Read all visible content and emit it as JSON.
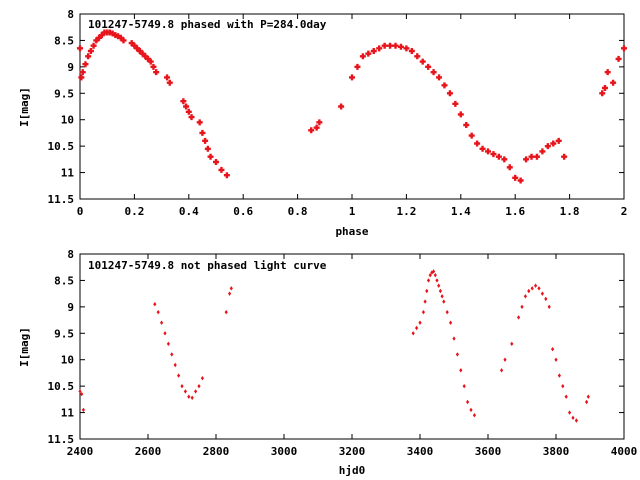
{
  "chart_data": [
    {
      "type": "scatter",
      "title": "101247-5749.8 phased with P=284.0day",
      "xlabel": "phase",
      "ylabel": "I[mag]",
      "xlim": [
        0,
        2
      ],
      "ylim": [
        8,
        11.5
      ],
      "y_inverted": true,
      "grid": false,
      "xticks": [
        0,
        0.2,
        0.4,
        0.6,
        0.8,
        1,
        1.2,
        1.4,
        1.6,
        1.8,
        2
      ],
      "xtick_labels": [
        "0",
        "0.2",
        "0.4",
        "0.6",
        "0.8",
        "1",
        "1.2",
        "1.4",
        "1.6",
        "1.8",
        "2"
      ],
      "yticks": [
        8,
        8.5,
        9,
        9.5,
        10,
        10.5,
        11,
        11.5
      ],
      "ytick_labels": [
        "8",
        "8.5",
        "9",
        "9.5",
        "10",
        "10.5",
        "11",
        "11.5"
      ],
      "marker_color": "#e8141c",
      "marker": "cross",
      "series": [
        {
          "x": [
            0.0,
            0.005,
            0.01,
            0.02,
            0.03,
            0.04,
            0.05,
            0.06,
            0.07,
            0.08,
            0.09,
            0.1,
            0.11,
            0.12,
            0.13,
            0.14,
            0.15,
            0.16,
            0.19,
            0.2,
            0.21,
            0.22,
            0.23,
            0.24,
            0.25,
            0.26,
            0.27,
            0.28,
            0.32,
            0.33,
            0.38,
            0.39,
            0.4,
            0.41,
            0.44,
            0.45,
            0.46,
            0.47,
            0.48,
            0.5,
            0.52,
            0.54,
            0.85,
            0.87,
            0.88,
            0.96,
            1.0,
            1.02,
            1.04,
            1.06,
            1.08,
            1.1,
            1.12,
            1.14,
            1.16,
            1.18,
            1.2,
            1.22,
            1.24,
            1.26,
            1.28,
            1.3,
            1.32,
            1.34,
            1.36,
            1.38,
            1.4,
            1.42,
            1.44,
            1.46,
            1.48,
            1.5,
            1.52,
            1.54,
            1.56,
            1.58,
            1.6,
            1.62,
            1.64,
            1.66,
            1.68,
            1.7,
            1.72,
            1.74,
            1.76,
            1.78,
            1.92,
            1.93,
            1.94,
            1.96,
            1.98,
            2.0
          ],
          "y": [
            8.65,
            9.2,
            9.1,
            8.95,
            8.8,
            8.7,
            8.6,
            8.5,
            8.45,
            8.4,
            8.35,
            8.35,
            8.35,
            8.37,
            8.4,
            8.42,
            8.45,
            8.5,
            8.55,
            8.6,
            8.65,
            8.7,
            8.75,
            8.8,
            8.85,
            8.9,
            9.0,
            9.1,
            9.2,
            9.3,
            9.65,
            9.75,
            9.85,
            9.95,
            10.05,
            10.25,
            10.4,
            10.55,
            10.7,
            10.8,
            10.95,
            11.05,
            10.2,
            10.15,
            10.05,
            9.75,
            9.2,
            9.0,
            8.8,
            8.75,
            8.7,
            8.65,
            8.6,
            8.6,
            8.6,
            8.62,
            8.65,
            8.7,
            8.8,
            8.9,
            9.0,
            9.1,
            9.2,
            9.35,
            9.5,
            9.7,
            9.9,
            10.1,
            10.3,
            10.45,
            10.55,
            10.6,
            10.65,
            10.7,
            10.75,
            10.9,
            11.1,
            11.15,
            10.75,
            10.7,
            10.7,
            10.6,
            10.5,
            10.45,
            10.4,
            10.7,
            9.5,
            9.4,
            9.1,
            9.3,
            8.85,
            8.65
          ]
        }
      ]
    },
    {
      "type": "scatter",
      "title": "101247-5749.8 not phased light curve",
      "xlabel": "hjd0",
      "ylabel": "I[mag]",
      "xlim": [
        2400,
        4000
      ],
      "ylim": [
        8,
        11.5
      ],
      "y_inverted": true,
      "grid": false,
      "xticks": [
        2400,
        2600,
        2800,
        3000,
        3200,
        3400,
        3600,
        3800,
        4000
      ],
      "xtick_labels": [
        "2400",
        "2600",
        "2800",
        "3000",
        "3200",
        "3400",
        "3600",
        "3800",
        "4000"
      ],
      "yticks": [
        8,
        8.5,
        9,
        9.5,
        10,
        10.5,
        11,
        11.5
      ],
      "ytick_labels": [
        "8",
        "8.5",
        "9",
        "9.5",
        "10",
        "10.5",
        "11",
        "11.5"
      ],
      "marker_color": "#e8141c",
      "marker": "diamond",
      "series": [
        {
          "x": [
            2400,
            2405,
            2410,
            2620,
            2630,
            2640,
            2650,
            2660,
            2670,
            2680,
            2690,
            2700,
            2710,
            2720,
            2730,
            2740,
            2750,
            2760,
            2830,
            2840,
            2845,
            3380,
            3390,
            3400,
            3410,
            3415,
            3420,
            3425,
            3430,
            3435,
            3440,
            3445,
            3450,
            3455,
            3460,
            3465,
            3470,
            3480,
            3490,
            3500,
            3510,
            3520,
            3530,
            3540,
            3550,
            3560,
            3640,
            3650,
            3670,
            3690,
            3700,
            3710,
            3720,
            3730,
            3740,
            3750,
            3760,
            3770,
            3780,
            3790,
            3800,
            3810,
            3820,
            3830,
            3840,
            3850,
            3860,
            3890,
            3895
          ],
          "y": [
            10.6,
            10.65,
            10.95,
            8.95,
            9.1,
            9.3,
            9.5,
            9.7,
            9.9,
            10.1,
            10.3,
            10.5,
            10.6,
            10.7,
            10.72,
            10.6,
            10.5,
            10.35,
            9.1,
            8.75,
            8.65,
            9.5,
            9.4,
            9.3,
            9.1,
            8.9,
            8.7,
            8.5,
            8.4,
            8.35,
            8.33,
            8.4,
            8.5,
            8.6,
            8.7,
            8.8,
            8.9,
            9.1,
            9.3,
            9.6,
            9.9,
            10.2,
            10.5,
            10.8,
            10.95,
            11.05,
            10.2,
            10.0,
            9.7,
            9.2,
            9.0,
            8.8,
            8.7,
            8.65,
            8.6,
            8.65,
            8.75,
            8.85,
            9.0,
            9.8,
            10.0,
            10.3,
            10.5,
            10.7,
            11.0,
            11.1,
            11.15,
            10.8,
            10.7
          ]
        }
      ]
    }
  ]
}
